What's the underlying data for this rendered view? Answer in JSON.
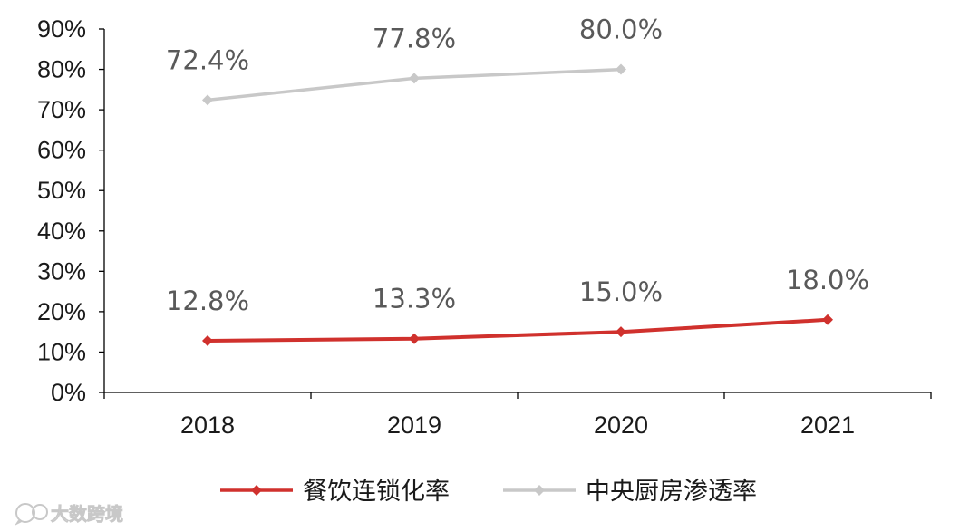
{
  "chart_data": {
    "type": "line",
    "categories": [
      "2018",
      "2019",
      "2020",
      "2021"
    ],
    "series": [
      {
        "name": "餐饮连锁化率",
        "values": [
          12.8,
          13.3,
          15.0,
          18.0
        ],
        "labels": [
          "12.8%",
          "13.3%",
          "15.0%",
          "18.0%"
        ],
        "color": "#d0312d"
      },
      {
        "name": "中央厨房渗透率",
        "values": [
          72.4,
          77.8,
          80.0,
          null
        ],
        "labels": [
          "72.4%",
          "77.8%",
          "80.0%",
          ""
        ],
        "color": "#c8c8c8"
      }
    ],
    "ylim": [
      0,
      90
    ],
    "yticks": [
      "0%",
      "10%",
      "20%",
      "30%",
      "40%",
      "50%",
      "60%",
      "70%",
      "80%",
      "90%"
    ],
    "xlabel": "",
    "ylabel": "",
    "grid": false,
    "legend_position": "bottom",
    "marker": "diamond"
  },
  "watermark": {
    "text": "大数跨境",
    "icon": "chat-bubble-icon"
  }
}
